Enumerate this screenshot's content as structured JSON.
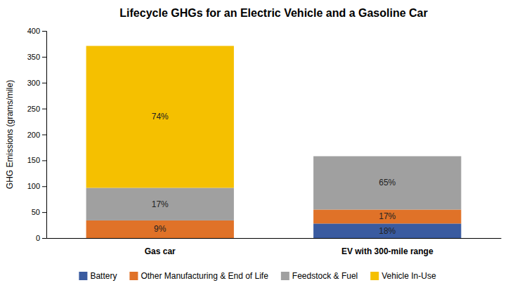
{
  "chart_data": {
    "type": "bar",
    "stacked": true,
    "title": "Lifecycle GHGs for an Electric Vehicle and a Gasoline Car",
    "ylabel": "GHG Emissions (grams/mile)",
    "categories": [
      "Gas car",
      "EV with 300-mile range"
    ],
    "series": [
      {
        "name": "Battery",
        "color": "#3A5BA0",
        "values": [
          0,
          28
        ],
        "shares": [
          null,
          {
            "value": 18,
            "label": "18%"
          }
        ]
      },
      {
        "name": "Other Manufacturing & End of Life",
        "color": "#E07228",
        "values": [
          34,
          27
        ],
        "shares": [
          {
            "value": 9,
            "label": "9%"
          },
          {
            "value": 17,
            "label": "17%"
          }
        ]
      },
      {
        "name": "Feedstock & Fuel",
        "color": "#A0A0A0",
        "values": [
          63,
          103
        ],
        "shares": [
          {
            "value": 17,
            "label": "17%"
          },
          {
            "value": 65,
            "label": "65%"
          }
        ]
      },
      {
        "name": "Vehicle In-Use",
        "color": "#F5C000",
        "values": [
          274,
          0
        ],
        "shares": [
          {
            "value": 74,
            "label": "74%"
          },
          null
        ]
      }
    ],
    "ylim": [
      0,
      400
    ],
    "yticks": [
      0,
      50,
      100,
      150,
      200,
      250,
      300,
      350,
      400
    ],
    "grid": false,
    "legend": "bottom"
  }
}
